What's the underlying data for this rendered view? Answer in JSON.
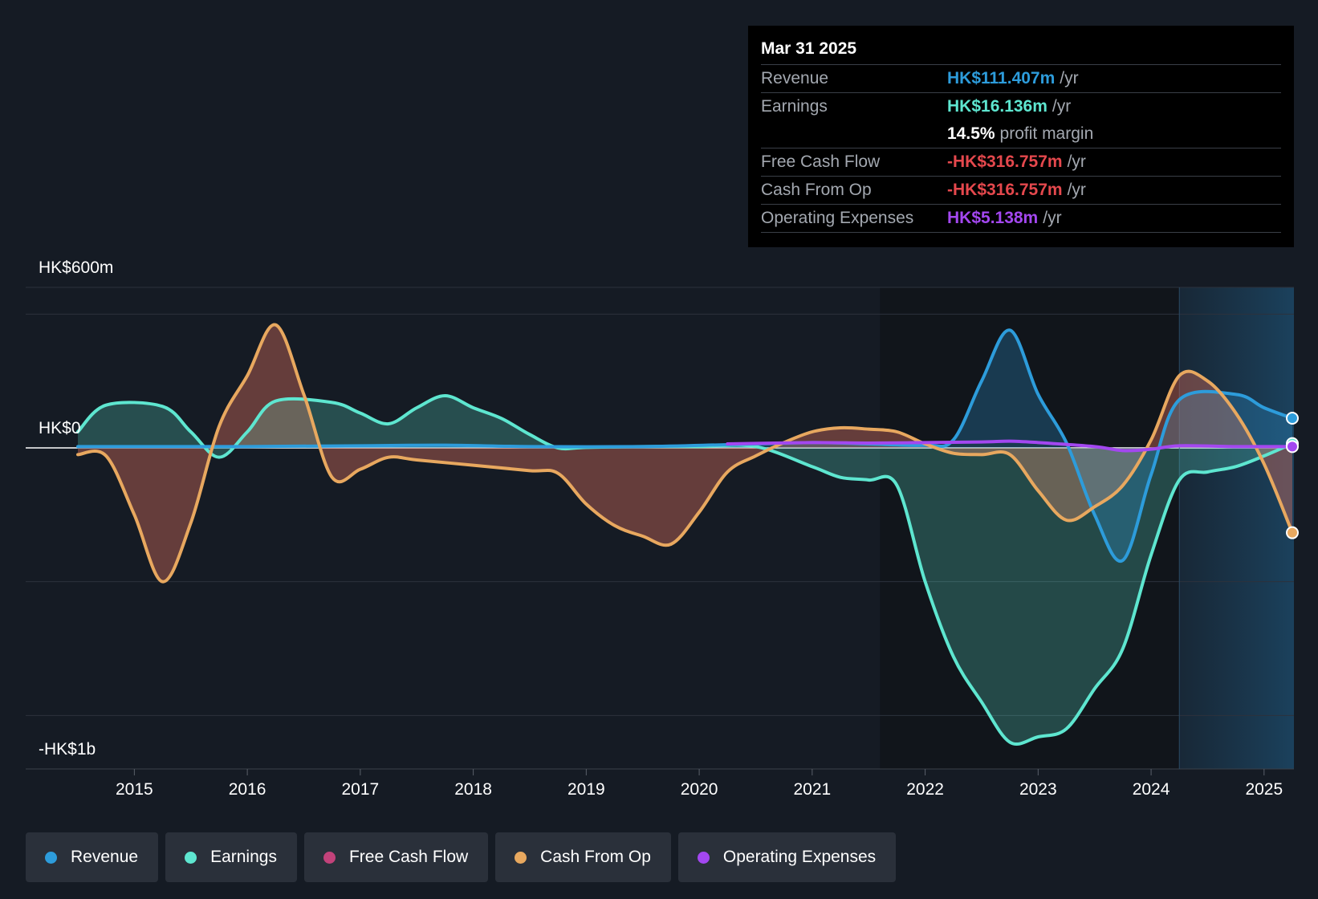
{
  "tooltip": {
    "date": "Mar 31 2025",
    "rows": [
      {
        "label": "Revenue",
        "value": "HK$111.407m",
        "unit": "/yr",
        "color": "#2d9cdb"
      },
      {
        "label": "Earnings",
        "value": "HK$16.136m",
        "unit": "/yr",
        "color": "#5ee6d0"
      },
      {
        "label": "",
        "value": "14.5%",
        "unit": "profit margin",
        "color": "#ffffff"
      },
      {
        "label": "Free Cash Flow",
        "value": "-HK$316.757m",
        "unit": "/yr",
        "color": "#e5484d"
      },
      {
        "label": "Cash From Op",
        "value": "-HK$316.757m",
        "unit": "/yr",
        "color": "#e5484d"
      },
      {
        "label": "Operating Expenses",
        "value": "HK$5.138m",
        "unit": "/yr",
        "color": "#a347f0"
      }
    ]
  },
  "legend": [
    {
      "label": "Revenue",
      "color": "#2d9cdb"
    },
    {
      "label": "Earnings",
      "color": "#5ee6d0"
    },
    {
      "label": "Free Cash Flow",
      "color": "#c2427a"
    },
    {
      "label": "Cash From Op",
      "color": "#e8a85f"
    },
    {
      "label": "Operating Expenses",
      "color": "#a347f0"
    }
  ],
  "chart_data": {
    "type": "line",
    "title": "",
    "y_tick_labels": [
      "HK$600m",
      "HK$0",
      "-HK$1b"
    ],
    "ylim": [
      -1200,
      600
    ],
    "x_ticks": [
      2015,
      2016,
      2017,
      2018,
      2019,
      2020,
      2021,
      2022,
      2023,
      2024,
      2025
    ],
    "xlim": [
      2014.5,
      2025.25
    ],
    "forecast_start": 2024.25,
    "series": [
      {
        "name": "Revenue",
        "color": "#2d9cdb",
        "x": [
          2014.5,
          2016.0,
          2017.0,
          2017.75,
          2018.5,
          2019.5,
          2020.25,
          2021.0,
          2021.5,
          2022.0,
          2022.25,
          2022.5,
          2022.75,
          2023.0,
          2023.25,
          2023.5,
          2023.75,
          2024.0,
          2024.25,
          2024.75,
          2025.0,
          2025.25
        ],
        "y": [
          5,
          5,
          8,
          10,
          5,
          5,
          12,
          20,
          15,
          10,
          30,
          250,
          440,
          200,
          20,
          -250,
          -420,
          -100,
          180,
          200,
          150,
          111
        ]
      },
      {
        "name": "Earnings",
        "color": "#5ee6d0",
        "x": [
          2014.5,
          2014.75,
          2015.25,
          2015.5,
          2015.75,
          2016.0,
          2016.25,
          2016.75,
          2017.0,
          2017.25,
          2017.5,
          2017.75,
          2018.0,
          2018.25,
          2018.5,
          2018.75,
          2019.0,
          2019.5,
          2020.0,
          2020.5,
          2021.0,
          2021.25,
          2021.5,
          2021.75,
          2022.0,
          2022.25,
          2022.5,
          2022.75,
          2023.0,
          2023.25,
          2023.5,
          2023.75,
          2024.0,
          2024.25,
          2024.5,
          2024.75,
          2025.0,
          2025.25
        ],
        "y": [
          60,
          160,
          155,
          60,
          -35,
          60,
          175,
          170,
          130,
          90,
          150,
          195,
          150,
          110,
          50,
          0,
          2,
          5,
          5,
          5,
          -70,
          -110,
          -120,
          -140,
          -500,
          -780,
          -950,
          -1100,
          -1080,
          -1050,
          -900,
          -750,
          -400,
          -120,
          -90,
          -70,
          -30,
          16
        ]
      },
      {
        "name": "Cash From Op",
        "color": "#e8a85f",
        "x": [
          2014.5,
          2014.75,
          2015.0,
          2015.25,
          2015.5,
          2015.75,
          2016.0,
          2016.25,
          2016.5,
          2016.75,
          2017.0,
          2017.25,
          2017.5,
          2018.0,
          2018.5,
          2018.75,
          2019.0,
          2019.25,
          2019.5,
          2019.75,
          2020.0,
          2020.25,
          2020.5,
          2020.75,
          2021.0,
          2021.25,
          2021.5,
          2021.75,
          2022.0,
          2022.25,
          2022.5,
          2022.75,
          2023.0,
          2023.25,
          2023.5,
          2023.75,
          2024.0,
          2024.25,
          2024.5,
          2024.75,
          2025.0,
          2025.25
        ],
        "y": [
          -25,
          -30,
          -250,
          -500,
          -280,
          80,
          270,
          460,
          200,
          -110,
          -80,
          -35,
          -45,
          -65,
          -85,
          -95,
          -210,
          -290,
          -330,
          -360,
          -240,
          -90,
          -30,
          20,
          60,
          75,
          70,
          60,
          15,
          -20,
          -25,
          -25,
          -160,
          -270,
          -220,
          -140,
          30,
          270,
          250,
          130,
          -60,
          -317
        ]
      },
      {
        "name": "Free Cash Flow",
        "color": "#c2427a",
        "x": [
          2014.5,
          2014.75,
          2015.0,
          2015.25,
          2015.5,
          2015.75,
          2016.0,
          2016.25,
          2016.5,
          2016.75,
          2017.0,
          2017.25,
          2017.5,
          2018.0,
          2018.5,
          2018.75,
          2019.0,
          2019.25,
          2019.5,
          2019.75,
          2020.0,
          2020.25,
          2020.5,
          2020.75,
          2021.0,
          2021.25,
          2021.5,
          2021.75,
          2022.0,
          2022.25,
          2022.5,
          2022.75,
          2023.0,
          2023.25,
          2023.5,
          2023.75,
          2024.0,
          2024.25,
          2024.5,
          2024.75,
          2025.0,
          2025.25
        ],
        "y": [
          -25,
          -30,
          -250,
          -500,
          -280,
          80,
          270,
          460,
          200,
          -110,
          -80,
          -35,
          -45,
          -65,
          -85,
          -95,
          -210,
          -290,
          -330,
          -360,
          -240,
          -90,
          -30,
          20,
          60,
          75,
          70,
          60,
          15,
          -20,
          -25,
          -25,
          -160,
          -270,
          -220,
          -140,
          30,
          270,
          250,
          130,
          -60,
          -317
        ]
      },
      {
        "name": "Operating Expenses",
        "color": "#a347f0",
        "x": [
          2020.25,
          2021.0,
          2021.5,
          2022.0,
          2022.5,
          2022.75,
          2023.0,
          2023.5,
          2023.75,
          2024.0,
          2024.25,
          2024.75,
          2025.25
        ],
        "y": [
          15,
          20,
          18,
          20,
          22,
          25,
          20,
          5,
          -10,
          -5,
          8,
          5,
          5
        ]
      }
    ]
  }
}
